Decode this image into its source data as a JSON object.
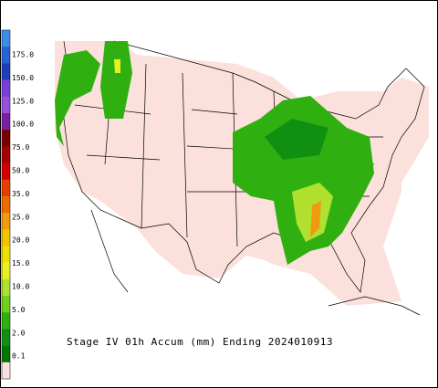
{
  "legend": {
    "labels": [
      "175.0",
      "150.0",
      "125.0",
      "100.0",
      "75.0",
      "50.0",
      "35.0",
      "25.0",
      "20.0",
      "15.0",
      "10.0",
      "5.0",
      "2.0",
      "0.1"
    ],
    "colors": [
      "#3a8ee8",
      "#2464d6",
      "#1e3fb8",
      "#7a3fd8",
      "#9b4fe0",
      "#7a1fa0",
      "#7a0000",
      "#a80000",
      "#d40000",
      "#e83c00",
      "#f06a00",
      "#f09a10",
      "#f4c400",
      "#f0e000",
      "#e8f020",
      "#b0e030",
      "#70d020",
      "#30b010",
      "#109010",
      "#007800",
      "#fbe0e0"
    ]
  },
  "caption": "Stage IV 01h Accum (mm) Ending 2024010913"
}
